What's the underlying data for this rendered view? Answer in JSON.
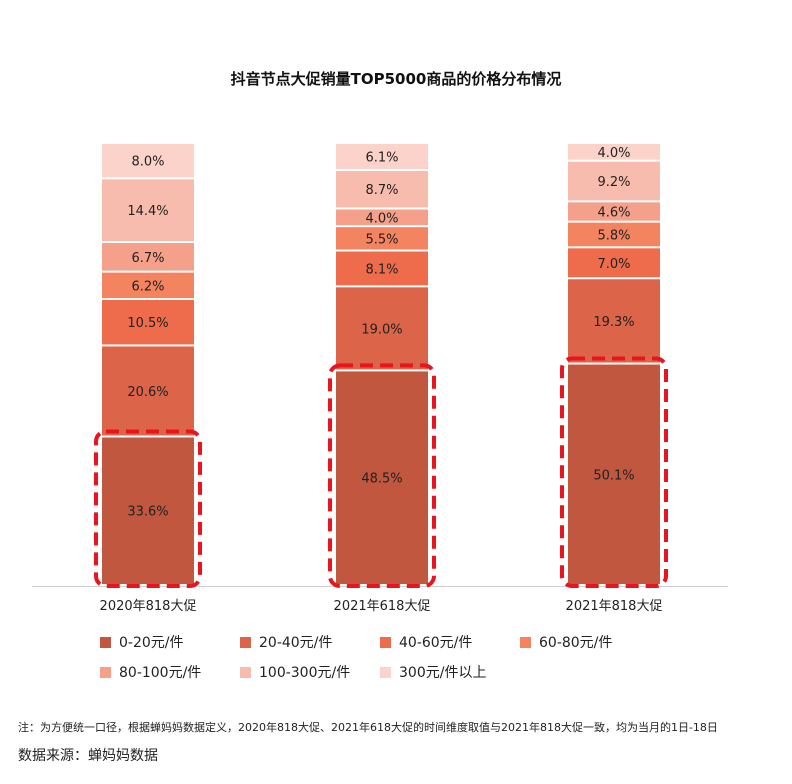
{
  "chart_data": {
    "type": "bar",
    "stacked": true,
    "percent_stacked": true,
    "title": "抖音节点大促销量TOP5000商品的价格分布情况",
    "categories": [
      "2020年818大促",
      "2021年618大促",
      "2021年818大促"
    ],
    "series": [
      {
        "name": "0-20元/件",
        "color": "#c0573e",
        "values": [
          33.6,
          48.5,
          50.1
        ]
      },
      {
        "name": "20-40元/件",
        "color": "#dc6448",
        "values": [
          20.6,
          19.0,
          19.3
        ]
      },
      {
        "name": "40-60元/件",
        "color": "#ee6c4c",
        "values": [
          10.5,
          8.1,
          7.0
        ]
      },
      {
        "name": "60-80元/件",
        "color": "#f4835f",
        "values": [
          6.2,
          5.5,
          5.8
        ]
      },
      {
        "name": "80-100元/件",
        "color": "#f5a08a",
        "values": [
          6.7,
          4.0,
          4.6
        ]
      },
      {
        "name": "100-300元/件",
        "color": "#f8bcae",
        "values": [
          14.4,
          8.7,
          9.2
        ]
      },
      {
        "name": "300元/件以上",
        "color": "#fbd3cb",
        "values": [
          8.0,
          6.1,
          4.0
        ]
      }
    ],
    "labels": [
      [
        "33.6%",
        "20.6%",
        "10.5%",
        "6.2%",
        "6.7%",
        "14.4%",
        "8.0%"
      ],
      [
        "48.5%",
        "19.0%",
        "8.1%",
        "5.5%",
        "4.0%",
        "8.7%",
        "6.1%"
      ],
      [
        "50.1%",
        "19.3%",
        "7.0%",
        "5.8%",
        "4.6%",
        "9.2%",
        "4.0%"
      ]
    ],
    "highlight_series": "0-20元/件",
    "highlight_color": "#e8141e",
    "legend_position": "bottom",
    "grid": false
  },
  "footnote": "注：为方便统一口径，根据蝉妈妈数据定义，2020年818大促、2021年618大促的时间维度取值与2021年818大促一致，均为当月的1日-18日",
  "source": "数据来源：蝉妈妈数据"
}
